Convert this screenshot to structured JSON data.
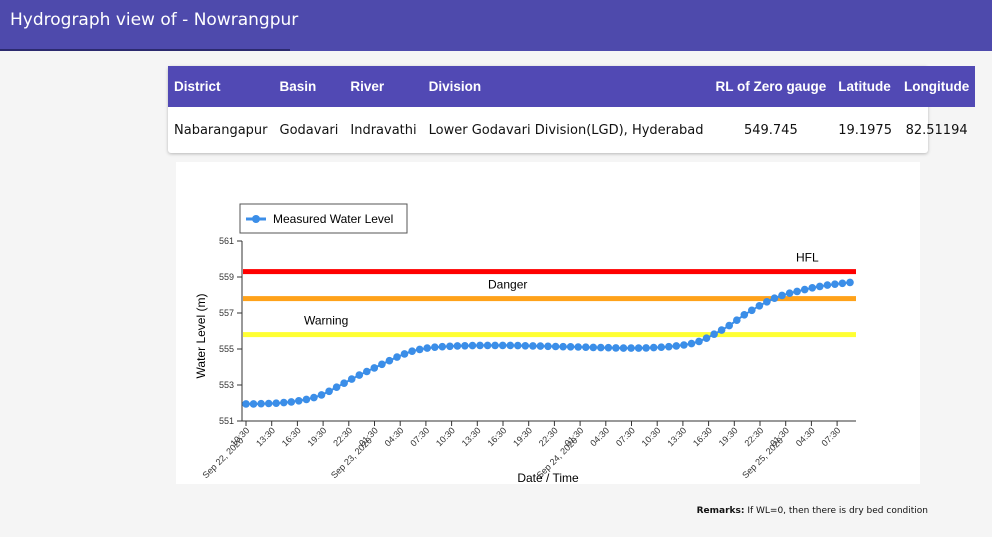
{
  "header": {
    "title": "Hydrograph view of - Nowrangpur"
  },
  "station_table": {
    "headers": [
      "District",
      "Basin",
      "River",
      "Division",
      "RL of Zero gauge",
      "Latitude",
      "Longitude"
    ],
    "row": [
      "Nabarangapur",
      "Godavari",
      "Indravathi",
      "Lower Godavari Division(LGD), Hyderabad",
      "549.745",
      "19.1975",
      "82.51194"
    ]
  },
  "chart_data": {
    "type": "line",
    "xlabel": "Date / Time",
    "ylabel": "Water Level (m)",
    "ylim": [
      551,
      561
    ],
    "yticks": [
      551,
      553,
      555,
      557,
      559,
      561
    ],
    "xticks": [
      "10:30",
      "13:30",
      "16:30",
      "19:30",
      "22:30",
      "01:30",
      "04:30",
      "07:30",
      "10:30",
      "13:30",
      "16:30",
      "19:30",
      "22:30",
      "01:30",
      "04:30",
      "07:30",
      "10:30",
      "13:30",
      "16:30",
      "19:30",
      "22:30",
      "01:30",
      "04:30",
      "07:30"
    ],
    "date_labels": [
      {
        "tick": 0,
        "text": "Sep 22, 2020"
      },
      {
        "tick": 5,
        "text": "Sep 23, 2020"
      },
      {
        "tick": 13,
        "text": "Sep 24, 2020"
      },
      {
        "tick": 21,
        "text": "Sep 25, 2020"
      }
    ],
    "legend": {
      "label": "Measured Water Level",
      "position": "top-left"
    },
    "grid": false,
    "colors": {
      "series": "#3b8ee8",
      "hfl": "#ff0000",
      "danger": "#ffa21a",
      "warning": "#ffff33"
    },
    "thresholds": [
      {
        "name": "HFL",
        "value": 559.3
      },
      {
        "name": "Danger",
        "value": 557.8
      },
      {
        "name": "Warning",
        "value": 555.8
      }
    ],
    "series": [
      {
        "name": "Measured Water Level",
        "values": [
          551.95,
          551.95,
          551.96,
          551.97,
          551.99,
          552.02,
          552.06,
          552.12,
          552.2,
          552.3,
          552.45,
          552.65,
          552.88,
          553.1,
          553.33,
          553.55,
          553.75,
          553.95,
          554.15,
          554.35,
          554.55,
          554.73,
          554.88,
          554.98,
          555.05,
          555.1,
          555.13,
          555.15,
          555.17,
          555.18,
          555.19,
          555.2,
          555.2,
          555.2,
          555.2,
          555.2,
          555.19,
          555.18,
          555.17,
          555.16,
          555.15,
          555.14,
          555.13,
          555.12,
          555.11,
          555.1,
          555.09,
          555.08,
          555.07,
          555.06,
          555.05,
          555.05,
          555.05,
          555.06,
          555.08,
          555.1,
          555.13,
          555.17,
          555.22,
          555.3,
          555.42,
          555.6,
          555.82,
          556.05,
          556.3,
          556.6,
          556.9,
          557.15,
          557.4,
          557.62,
          557.82,
          557.98,
          558.1,
          558.2,
          558.3,
          558.4,
          558.48,
          558.55,
          558.6,
          558.65,
          558.7
        ]
      }
    ]
  },
  "remarks": {
    "label": "Remarks:",
    "text": " If WL=0, then there is dry bed condition"
  }
}
